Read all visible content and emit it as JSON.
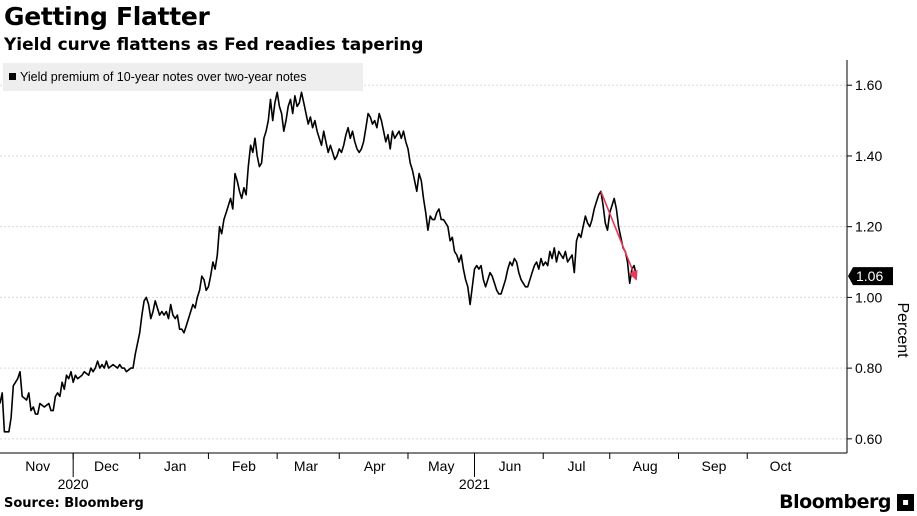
{
  "header": {
    "title": "Getting Flatter",
    "subtitle": "Yield curve flattens as Fed readies tapering"
  },
  "footer": {
    "source": "Source: Bloomberg",
    "brand": "Bloomberg"
  },
  "colors": {
    "line": "#000000",
    "trend": "#e8385a",
    "grid": "#d9d9d9",
    "legend_bg": "#eeeeee",
    "badge_bg": "#000000",
    "badge_text": "#ffffff"
  },
  "chart_data": {
    "type": "line",
    "title": "Getting Flatter",
    "subtitle": "Yield curve flattens as Fed readies tapering",
    "ylabel": "Percent",
    "xlabel": "",
    "ylim": [
      0.56,
      1.66
    ],
    "yticks": [
      0.6,
      0.8,
      1.0,
      1.2,
      1.4,
      1.6
    ],
    "ytick_labels": [
      "0.60",
      "0.80",
      "1.00",
      "1.20",
      "1.40",
      "1.60"
    ],
    "grid": "horizontal",
    "x_months": [
      "Nov",
      "Dec",
      "Jan",
      "Feb",
      "Mar",
      "Apr",
      "May",
      "Jun",
      "Jul",
      "Aug",
      "Sep",
      "Oct"
    ],
    "x_years": [
      "2020",
      "2021"
    ],
    "legend": [
      "Yield premium of 10-year notes over two-year notes"
    ],
    "legend_position": "top-left",
    "last_value": 1.06,
    "last_value_label": "1.06",
    "x_start_day": -4,
    "x_end_day": 378,
    "month_label_days": [
      13,
      44,
      75,
      106,
      134,
      165,
      195,
      226,
      256,
      287,
      318,
      348
    ],
    "month_tick_days": [
      29,
      59,
      90,
      121,
      149,
      180,
      210,
      241,
      271,
      302,
      333
    ],
    "year_label_days": [
      29,
      210
    ],
    "series": [
      {
        "name": "Yield premium of 10-year notes over two-year notes",
        "points": [
          [
            -4,
            0.7
          ],
          [
            -3,
            0.73
          ],
          [
            -2,
            0.62
          ],
          [
            0,
            0.62
          ],
          [
            1,
            0.66
          ],
          [
            2,
            0.75
          ],
          [
            4,
            0.77
          ],
          [
            5,
            0.79
          ],
          [
            6,
            0.72
          ],
          [
            8,
            0.71
          ],
          [
            9,
            0.73
          ],
          [
            10,
            0.68
          ],
          [
            11,
            0.69
          ],
          [
            12,
            0.67
          ],
          [
            13,
            0.67
          ],
          [
            14,
            0.7
          ],
          [
            16,
            0.69
          ],
          [
            18,
            0.7
          ],
          [
            19,
            0.68
          ],
          [
            20,
            0.68
          ],
          [
            21,
            0.72
          ],
          [
            22,
            0.73
          ],
          [
            23,
            0.72
          ],
          [
            24,
            0.76
          ],
          [
            25,
            0.74
          ],
          [
            26,
            0.78
          ],
          [
            27,
            0.77
          ],
          [
            28,
            0.79
          ],
          [
            29,
            0.76
          ],
          [
            30,
            0.78
          ],
          [
            31,
            0.77
          ],
          [
            33,
            0.78
          ],
          [
            34,
            0.79
          ],
          [
            36,
            0.78
          ],
          [
            37,
            0.8
          ],
          [
            38,
            0.79
          ],
          [
            39,
            0.8
          ],
          [
            40,
            0.82
          ],
          [
            41,
            0.8
          ],
          [
            42,
            0.81
          ],
          [
            43,
            0.8
          ],
          [
            44,
            0.82
          ],
          [
            45,
            0.8
          ],
          [
            47,
            0.81
          ],
          [
            49,
            0.8
          ],
          [
            50,
            0.81
          ],
          [
            51,
            0.8
          ],
          [
            52,
            0.8
          ],
          [
            53,
            0.79
          ],
          [
            55,
            0.8
          ],
          [
            56,
            0.8
          ],
          [
            57,
            0.84
          ],
          [
            59,
            0.9
          ],
          [
            60,
            0.95
          ],
          [
            61,
            0.99
          ],
          [
            62,
            1.0
          ],
          [
            63,
            0.98
          ],
          [
            64,
            0.94
          ],
          [
            65,
            0.96
          ],
          [
            66,
            0.99
          ],
          [
            67,
            0.97
          ],
          [
            68,
            0.95
          ],
          [
            69,
            0.96
          ],
          [
            70,
            0.95
          ],
          [
            71,
            0.96
          ],
          [
            72,
            0.94
          ],
          [
            73,
            0.98
          ],
          [
            74,
            0.95
          ],
          [
            75,
            0.94
          ],
          [
            76,
            0.95
          ],
          [
            77,
            0.91
          ],
          [
            78,
            0.91
          ],
          [
            79,
            0.9
          ],
          [
            80,
            0.92
          ],
          [
            81,
            0.94
          ],
          [
            82,
            0.96
          ],
          [
            83,
            0.98
          ],
          [
            84,
            0.97
          ],
          [
            85,
            1.0
          ],
          [
            86,
            1.02
          ],
          [
            87,
            1.06
          ],
          [
            88,
            1.05
          ],
          [
            89,
            1.02
          ],
          [
            90,
            1.03
          ],
          [
            91,
            1.06
          ],
          [
            92,
            1.1
          ],
          [
            93,
            1.08
          ],
          [
            94,
            1.12
          ],
          [
            95,
            1.2
          ],
          [
            96,
            1.18
          ],
          [
            97,
            1.22
          ],
          [
            98,
            1.24
          ],
          [
            99,
            1.26
          ],
          [
            100,
            1.28
          ],
          [
            101,
            1.25
          ],
          [
            102,
            1.35
          ],
          [
            103,
            1.33
          ],
          [
            104,
            1.3
          ],
          [
            105,
            1.28
          ],
          [
            106,
            1.31
          ],
          [
            107,
            1.29
          ],
          [
            108,
            1.37
          ],
          [
            109,
            1.43
          ],
          [
            110,
            1.41
          ],
          [
            111,
            1.45
          ],
          [
            112,
            1.4
          ],
          [
            113,
            1.37
          ],
          [
            114,
            1.38
          ],
          [
            115,
            1.45
          ],
          [
            116,
            1.47
          ],
          [
            117,
            1.5
          ],
          [
            118,
            1.56
          ],
          [
            119,
            1.5
          ],
          [
            120,
            1.55
          ],
          [
            121,
            1.58
          ],
          [
            122,
            1.54
          ],
          [
            123,
            1.52
          ],
          [
            124,
            1.47
          ],
          [
            125,
            1.5
          ],
          [
            126,
            1.54
          ],
          [
            127,
            1.56
          ],
          [
            128,
            1.52
          ],
          [
            129,
            1.57
          ],
          [
            130,
            1.54
          ],
          [
            131,
            1.55
          ],
          [
            132,
            1.58
          ],
          [
            133,
            1.55
          ],
          [
            134,
            1.52
          ],
          [
            135,
            1.49
          ],
          [
            136,
            1.51
          ],
          [
            137,
            1.48
          ],
          [
            138,
            1.5
          ],
          [
            139,
            1.47
          ],
          [
            140,
            1.45
          ],
          [
            141,
            1.43
          ],
          [
            142,
            1.47
          ],
          [
            143,
            1.44
          ],
          [
            144,
            1.41
          ],
          [
            145,
            1.43
          ],
          [
            146,
            1.41
          ],
          [
            147,
            1.39
          ],
          [
            148,
            1.4
          ],
          [
            149,
            1.42
          ],
          [
            150,
            1.41
          ],
          [
            151,
            1.43
          ],
          [
            152,
            1.46
          ],
          [
            153,
            1.48
          ],
          [
            154,
            1.45
          ],
          [
            155,
            1.47
          ],
          [
            156,
            1.44
          ],
          [
            157,
            1.42
          ],
          [
            158,
            1.41
          ],
          [
            159,
            1.42
          ],
          [
            160,
            1.44
          ],
          [
            161,
            1.48
          ],
          [
            162,
            1.52
          ],
          [
            163,
            1.51
          ],
          [
            164,
            1.49
          ],
          [
            165,
            1.5
          ],
          [
            166,
            1.48
          ],
          [
            167,
            1.52
          ],
          [
            168,
            1.5
          ],
          [
            169,
            1.47
          ],
          [
            170,
            1.44
          ],
          [
            171,
            1.46
          ],
          [
            172,
            1.42
          ],
          [
            173,
            1.47
          ],
          [
            174,
            1.45
          ],
          [
            175,
            1.46
          ],
          [
            176,
            1.47
          ],
          [
            177,
            1.45
          ],
          [
            178,
            1.47
          ],
          [
            179,
            1.44
          ],
          [
            180,
            1.42
          ],
          [
            181,
            1.38
          ],
          [
            182,
            1.36
          ],
          [
            183,
            1.33
          ],
          [
            184,
            1.3
          ],
          [
            185,
            1.35
          ],
          [
            186,
            1.33
          ],
          [
            187,
            1.28
          ],
          [
            188,
            1.24
          ],
          [
            189,
            1.19
          ],
          [
            190,
            1.23
          ],
          [
            191,
            1.22
          ],
          [
            192,
            1.22
          ],
          [
            193,
            1.24
          ],
          [
            194,
            1.25
          ],
          [
            195,
            1.22
          ],
          [
            196,
            1.22
          ],
          [
            197,
            1.21
          ],
          [
            198,
            1.2
          ],
          [
            199,
            1.16
          ],
          [
            200,
            1.17
          ],
          [
            201,
            1.13
          ],
          [
            202,
            1.12
          ],
          [
            203,
            1.1
          ],
          [
            204,
            1.12
          ],
          [
            205,
            1.08
          ],
          [
            206,
            1.05
          ],
          [
            207,
            1.03
          ],
          [
            208,
            0.98
          ],
          [
            209,
            1.03
          ],
          [
            210,
            1.08
          ],
          [
            211,
            1.09
          ],
          [
            212,
            1.08
          ],
          [
            213,
            1.09
          ],
          [
            214,
            1.05
          ],
          [
            215,
            1.03
          ],
          [
            216,
            1.05
          ],
          [
            217,
            1.07
          ],
          [
            218,
            1.06
          ],
          [
            219,
            1.04
          ],
          [
            220,
            1.02
          ],
          [
            221,
            1.01
          ],
          [
            222,
            1.01
          ],
          [
            223,
            1.03
          ],
          [
            224,
            1.05
          ],
          [
            225,
            1.08
          ],
          [
            226,
            1.1
          ],
          [
            227,
            1.09
          ],
          [
            228,
            1.11
          ],
          [
            229,
            1.1
          ],
          [
            230,
            1.07
          ],
          [
            231,
            1.05
          ],
          [
            232,
            1.04
          ],
          [
            233,
            1.03
          ],
          [
            234,
            1.03
          ],
          [
            235,
            1.05
          ],
          [
            236,
            1.07
          ],
          [
            237,
            1.09
          ],
          [
            238,
            1.1
          ],
          [
            239,
            1.08
          ],
          [
            240,
            1.11
          ],
          [
            241,
            1.09
          ],
          [
            242,
            1.1
          ],
          [
            243,
            1.09
          ],
          [
            244,
            1.13
          ],
          [
            245,
            1.11
          ],
          [
            246,
            1.14
          ],
          [
            247,
            1.1
          ],
          [
            248,
            1.13
          ],
          [
            249,
            1.12
          ],
          [
            250,
            1.11
          ],
          [
            251,
            1.13
          ],
          [
            252,
            1.1
          ],
          [
            253,
            1.11
          ],
          [
            254,
            1.12
          ],
          [
            255,
            1.07
          ],
          [
            256,
            1.16
          ],
          [
            257,
            1.18
          ],
          [
            258,
            1.17
          ],
          [
            259,
            1.2
          ],
          [
            260,
            1.23
          ],
          [
            261,
            1.21
          ],
          [
            262,
            1.2
          ],
          [
            263,
            1.22
          ],
          [
            264,
            1.25
          ],
          [
            265,
            1.27
          ],
          [
            266,
            1.29
          ],
          [
            267,
            1.3
          ],
          [
            268,
            1.26
          ],
          [
            269,
            1.21
          ],
          [
            270,
            1.19
          ],
          [
            271,
            1.24
          ],
          [
            272,
            1.26
          ],
          [
            273,
            1.28
          ],
          [
            274,
            1.25
          ],
          [
            275,
            1.2
          ],
          [
            276,
            1.17
          ],
          [
            277,
            1.14
          ],
          [
            278,
            1.13
          ],
          [
            279,
            1.1
          ],
          [
            280,
            1.04
          ],
          [
            281,
            1.08
          ],
          [
            282,
            1.09
          ],
          [
            283,
            1.06
          ]
        ]
      }
    ],
    "annotations": [
      {
        "type": "arrow",
        "from": [
          267,
          1.3
        ],
        "to": [
          283,
          1.05
        ]
      }
    ]
  }
}
